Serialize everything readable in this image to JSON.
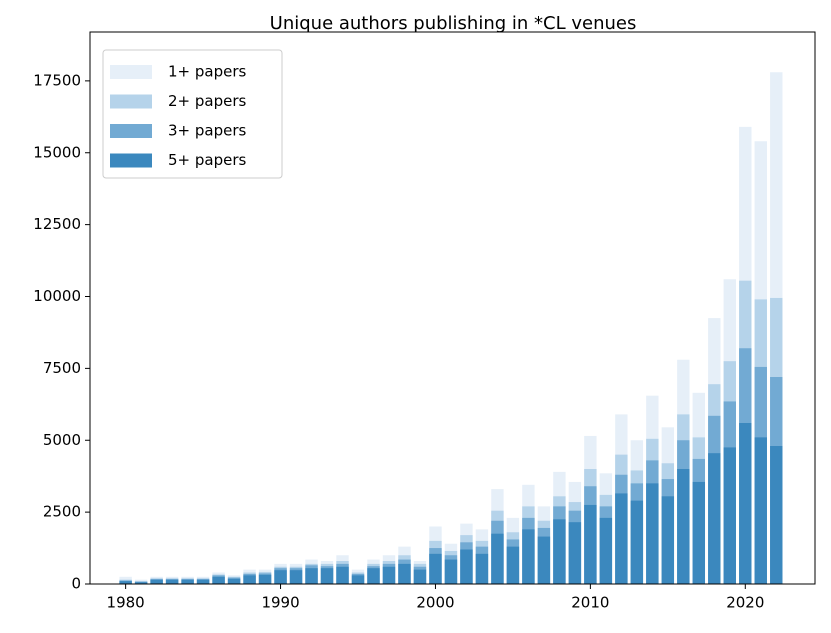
{
  "chart_data": {
    "type": "bar",
    "title": "Unique authors publishing in *CL venues",
    "x": [
      1980,
      1981,
      1982,
      1983,
      1984,
      1985,
      1986,
      1987,
      1988,
      1989,
      1990,
      1991,
      1992,
      1993,
      1994,
      1995,
      1996,
      1997,
      1998,
      1999,
      2000,
      2001,
      2002,
      2003,
      2004,
      2005,
      2006,
      2007,
      2008,
      2009,
      2010,
      2011,
      2012,
      2013,
      2014,
      2015,
      2016,
      2017,
      2018,
      2019,
      2020,
      2021,
      2022
    ],
    "series": [
      {
        "name": "1+ papers",
        "color": "#e6eff8",
        "values": [
          250,
          150,
          250,
          250,
          250,
          250,
          400,
          300,
          500,
          500,
          700,
          700,
          850,
          800,
          1000,
          500,
          850,
          1000,
          1300,
          800,
          2000,
          1400,
          2100,
          1900,
          3300,
          2300,
          3450,
          2700,
          3900,
          3550,
          5150,
          3850,
          5900,
          5000,
          6550,
          5450,
          7800,
          6650,
          9250,
          10600,
          15900,
          15400,
          17800
        ]
      },
      {
        "name": "2+ papers",
        "color": "#b5d3ea",
        "values": [
          150,
          100,
          200,
          200,
          200,
          200,
          330,
          250,
          400,
          420,
          600,
          600,
          700,
          700,
          800,
          400,
          700,
          800,
          1000,
          700,
          1500,
          1150,
          1700,
          1500,
          2550,
          1800,
          2700,
          2200,
          3050,
          2850,
          4000,
          3100,
          4500,
          3950,
          5050,
          4200,
          5900,
          5100,
          6950,
          7750,
          10550,
          9900,
          9950
        ]
      },
      {
        "name": "3+ papers",
        "color": "#72aad3",
        "values": [
          120,
          80,
          170,
          170,
          170,
          170,
          300,
          220,
          350,
          370,
          550,
          550,
          650,
          620,
          700,
          350,
          620,
          700,
          850,
          600,
          1250,
          1000,
          1450,
          1300,
          2200,
          1550,
          2300,
          1950,
          2700,
          2550,
          3400,
          2700,
          3800,
          3500,
          4300,
          3650,
          5000,
          4350,
          5850,
          6350,
          8200,
          7550,
          7200
        ]
      },
      {
        "name": "5+ papers",
        "color": "#3b88be",
        "values": [
          100,
          60,
          150,
          150,
          150,
          150,
          250,
          180,
          300,
          320,
          480,
          480,
          550,
          550,
          600,
          300,
          550,
          600,
          700,
          500,
          1050,
          850,
          1200,
          1050,
          1750,
          1300,
          1900,
          1650,
          2250,
          2150,
          2750,
          2300,
          3150,
          2900,
          3500,
          3050,
          4000,
          3550,
          4550,
          4750,
          5600,
          5100,
          4800
        ]
      }
    ],
    "xlim": [
      1977.7,
      2024.5
    ],
    "xticks": [
      1980,
      1990,
      2000,
      2010,
      2020
    ],
    "ylim": [
      0,
      19200
    ],
    "yticks": [
      0,
      2500,
      5000,
      7500,
      10000,
      12500,
      15000,
      17500
    ],
    "legend": "upper left"
  }
}
